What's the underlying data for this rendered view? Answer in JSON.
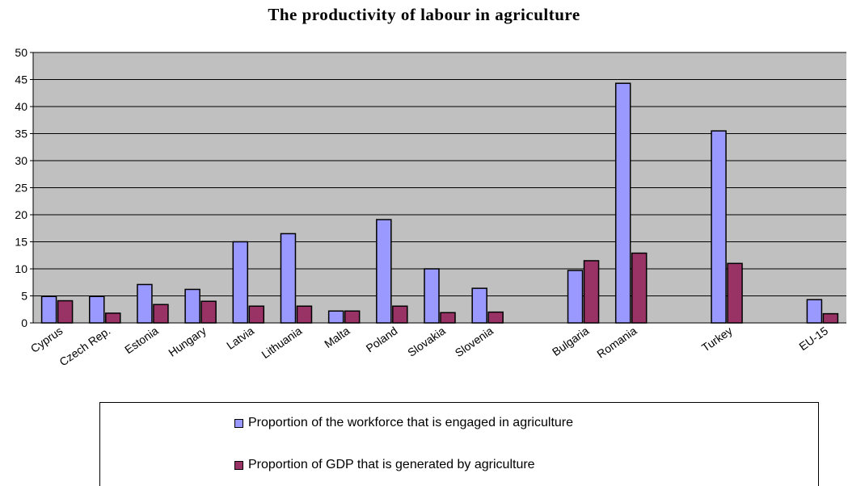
{
  "chart_data": {
    "type": "bar",
    "title": "The productivity of labour in agriculture",
    "xlabel": "",
    "ylabel": "",
    "ylim": [
      0,
      50
    ],
    "yticks": [
      0,
      5,
      10,
      15,
      20,
      25,
      30,
      35,
      40,
      45,
      50
    ],
    "grid": true,
    "legend_position": "bottom",
    "categories": [
      "Cyprus",
      "Czech Rep.",
      "Estonia",
      "Hungary",
      "Latvia",
      "Lithuania",
      "Malta",
      "Poland",
      "Slovakia",
      "Slovenia",
      "",
      "Bulgaria",
      "Romania",
      "",
      "Turkey",
      "",
      "EU-15"
    ],
    "series": [
      {
        "name": "Proportion of the workforce that is engaged in agriculture",
        "color": "#9999ff",
        "values": [
          4.9,
          4.9,
          7.1,
          6.2,
          15,
          16.5,
          2.2,
          19.1,
          10,
          6.4,
          null,
          9.7,
          44.3,
          null,
          35.5,
          null,
          4.3
        ]
      },
      {
        "name": "Proportion of GDP that is generated by agriculture",
        "color": "#993366",
        "values": [
          4.1,
          1.8,
          3.4,
          4,
          3.1,
          3.1,
          2.2,
          3.1,
          1.9,
          2,
          null,
          11.5,
          12.9,
          null,
          11,
          null,
          1.7
        ]
      }
    ],
    "plot_background": "#c0c0c0"
  }
}
